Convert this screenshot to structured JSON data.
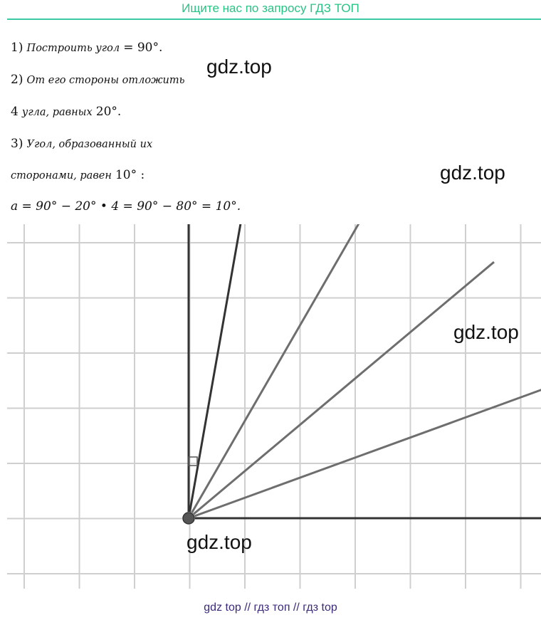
{
  "banner": {
    "text": "Ищите нас по запросу ГДЗ ТОП"
  },
  "solution": {
    "line1": {
      "num": "1)",
      "text": "Построить угол",
      "math": "= 90°."
    },
    "line2": {
      "num": "2)",
      "text": "От его стороны отложить"
    },
    "line3": {
      "num": "4",
      "text": "угла,  равных",
      "math": "20°."
    },
    "line4": {
      "num": "3)",
      "text": "Угол,  образованный их"
    },
    "line5": {
      "text": "сторонами,  равен",
      "math": "10° :"
    },
    "line6": {
      "formula": "a = 90° − 20° • 4 = 90° − 80° = 10°."
    }
  },
  "watermarks": [
    "gdz.top",
    "gdz.top",
    "gdz.top",
    "gdz.top"
  ],
  "footer": {
    "text": "gdz top  //  гдз топ  //  гдз top"
  },
  "figure": {
    "angle_total_deg": 90,
    "step_deg": 20,
    "rays_deg": [
      0,
      20,
      40,
      60,
      80,
      90
    ],
    "colors": {
      "grid": "#cfcfcf",
      "ray": "#6e6e6e",
      "ray_dark": "#333333",
      "vertex": "#555555"
    }
  }
}
